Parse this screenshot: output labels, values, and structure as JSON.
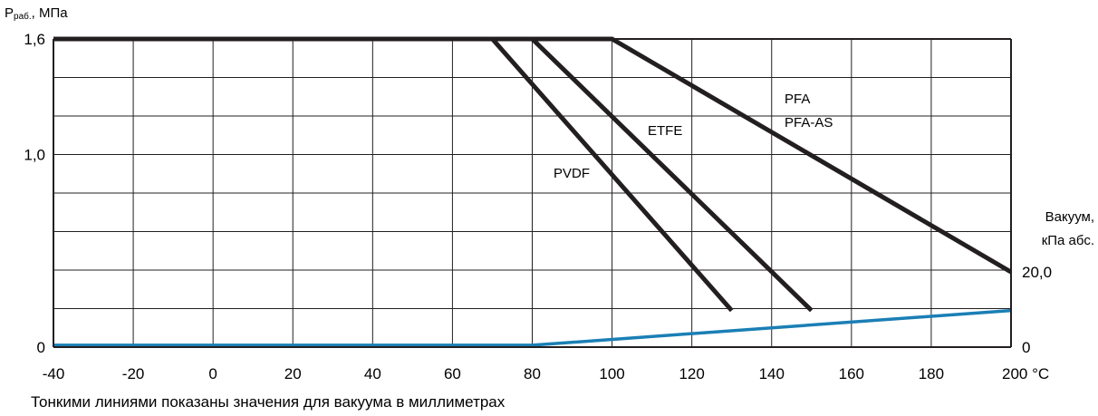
{
  "chart_data": {
    "type": "line",
    "ylabel_main": "P",
    "ylabel_sub": "раб.",
    "ylabel_rest": ", МПа",
    "y_ticks": [
      "1,6",
      "1,0",
      "0"
    ],
    "y_tick_values": [
      1.6,
      1.0,
      0
    ],
    "ylim": [
      0,
      1.6
    ],
    "xlim": [
      -40,
      200
    ],
    "x_ticks": [
      "-40",
      "-20",
      "0",
      "20",
      "40",
      "60",
      "80",
      "100",
      "120",
      "140",
      "160",
      "180",
      "200 °C"
    ],
    "x_tick_values": [
      -40,
      -20,
      0,
      20,
      40,
      60,
      80,
      100,
      120,
      140,
      160,
      180,
      200
    ],
    "right_axis_label_line1": "Вакуум,",
    "right_axis_label_line2": "кПа абс.",
    "right_ticks": [
      "20,0",
      "0"
    ],
    "right_tick_values": [
      0.39,
      0
    ],
    "grid": true,
    "series": [
      {
        "name": "PVDF",
        "color": "#231f20",
        "points": [
          [
            -20,
            1.6
          ],
          [
            70,
            1.6
          ],
          [
            130,
            0.19
          ]
        ]
      },
      {
        "name": "ETFE",
        "color": "#231f20",
        "points": [
          [
            -40,
            1.6
          ],
          [
            80,
            1.6
          ],
          [
            150,
            0.19
          ]
        ]
      },
      {
        "name": "PFA",
        "name2": "PFA-AS",
        "color": "#231f20",
        "points": [
          [
            -40,
            1.6
          ],
          [
            100,
            1.6
          ],
          [
            200,
            0.39
          ]
        ]
      },
      {
        "name": "vacuum",
        "color": "#1a7fb5",
        "points": [
          [
            -40,
            0.01
          ],
          [
            80,
            0.01
          ],
          [
            200,
            0.19
          ]
        ]
      }
    ],
    "note": "Тонкими линиями показаны значения для вакуума в миллиметрах"
  }
}
